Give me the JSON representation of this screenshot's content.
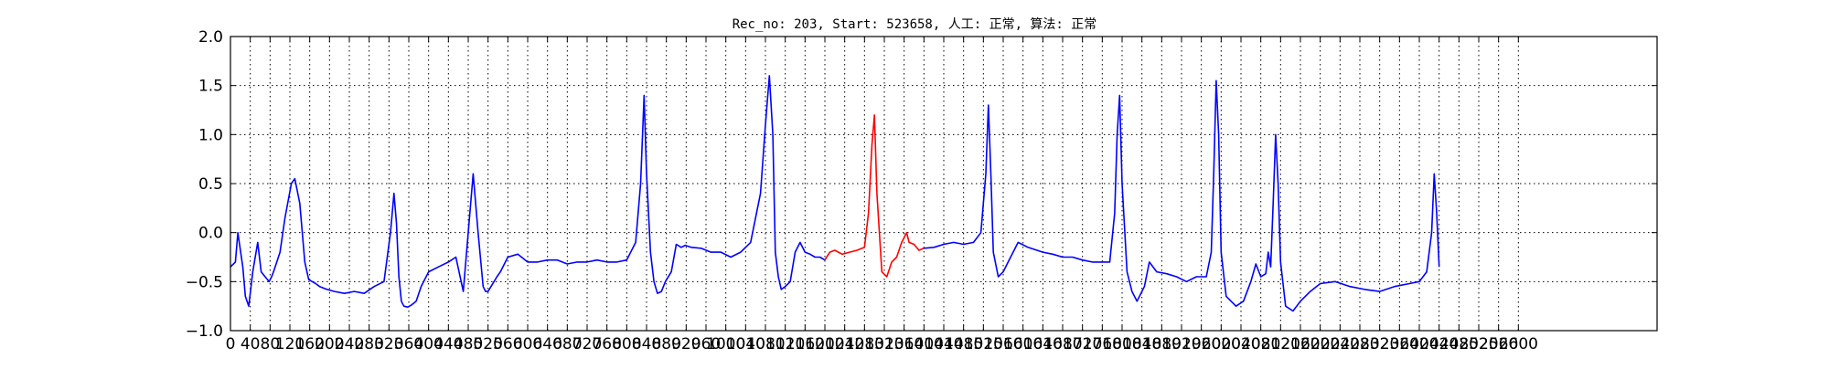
{
  "chart_data": {
    "type": "line",
    "title": "Rec_no: 203, Start: 523658, 人工: 正常, 算法: 正常",
    "xlabel": "",
    "ylabel": "",
    "xlim": [
      0,
      2880
    ],
    "ylim": [
      -1.0,
      2.0
    ],
    "grid": true,
    "y_ticks": [
      "−1.0",
      "−0.5",
      "0.0",
      "0.5",
      "1.0",
      "1.5",
      "2.0"
    ],
    "x_ticks": [
      "0",
      "40",
      "80",
      "120",
      "160",
      "200",
      "240",
      "280",
      "320",
      "360",
      "400",
      "440",
      "480",
      "520",
      "560",
      "600",
      "640",
      "680",
      "720",
      "760",
      "800",
      "840",
      "880",
      "920",
      "960",
      "1000",
      "1040",
      "1080",
      "1120",
      "1160",
      "1200",
      "1240",
      "1280",
      "1320",
      "1360",
      "1400",
      "1440",
      "1480",
      "1520",
      "1560",
      "1600",
      "1640",
      "1680",
      "1720",
      "1760",
      "1800",
      "1840",
      "1880",
      "1920",
      "1960",
      "2000",
      "2040",
      "2080",
      "2120",
      "2160",
      "2200",
      "2240",
      "2280",
      "2320",
      "2360",
      "2400",
      "2440",
      "2480",
      "2520",
      "2560",
      "2600"
    ],
    "series": [
      {
        "color": "#0000ff",
        "x": [
          0,
          10,
          15,
          25,
          30,
          37,
          45,
          55,
          62,
          70,
          78,
          83,
          87,
          100,
          110,
          123,
          130,
          140,
          150,
          158,
          165,
          172,
          180,
          195,
          210,
          230,
          250,
          270,
          290,
          310,
          323,
          330,
          335,
          340,
          345,
          350,
          358,
          365,
          375,
          385,
          400,
          420,
          440,
          455,
          470,
          480,
          490,
          500,
          510,
          515,
          520,
          526,
          532,
          538,
          545,
          560,
          580,
          600,
          620,
          640,
          660,
          680,
          700,
          720,
          740,
          760,
          780,
          800,
          818,
          828,
          835,
          840,
          848,
          855,
          862,
          870,
          878,
          890,
          900,
          910,
          918,
          930,
          950,
          970,
          990,
          1010,
          1030,
          1050,
          1070,
          1080,
          1088,
          1095,
          1100,
          1106,
          1112,
          1120,
          1130,
          1140,
          1150,
          1160,
          1170,
          1180,
          1190,
          1200
        ],
        "y": [
          -0.35,
          -0.3,
          0.0,
          -0.35,
          -0.65,
          -0.75,
          -0.4,
          -0.1,
          -0.4,
          -0.45,
          -0.5,
          -0.45,
          -0.4,
          -0.2,
          0.15,
          0.5,
          0.55,
          0.3,
          -0.3,
          -0.48,
          -0.5,
          -0.52,
          -0.55,
          -0.58,
          -0.6,
          -0.62,
          -0.6,
          -0.62,
          -0.55,
          -0.5,
          0.0,
          0.4,
          0.1,
          -0.45,
          -0.7,
          -0.75,
          -0.76,
          -0.74,
          -0.7,
          -0.55,
          -0.4,
          -0.35,
          -0.3,
          -0.25,
          -0.6,
          0.0,
          0.6,
          0.0,
          -0.55,
          -0.6,
          -0.6,
          -0.55,
          -0.5,
          -0.45,
          -0.4,
          -0.25,
          -0.22,
          -0.3,
          -0.3,
          -0.28,
          -0.28,
          -0.32,
          -0.3,
          -0.3,
          -0.28,
          -0.3,
          -0.3,
          -0.28,
          -0.1,
          0.5,
          1.4,
          0.6,
          -0.2,
          -0.5,
          -0.62,
          -0.6,
          -0.5,
          -0.4,
          -0.12,
          -0.15,
          -0.13,
          -0.15,
          -0.16,
          -0.2,
          -0.2,
          -0.25,
          -0.2,
          -0.1,
          0.4,
          1.1,
          1.6,
          1.0,
          -0.2,
          -0.45,
          -0.58,
          -0.55,
          -0.5,
          -0.2,
          -0.1,
          -0.2,
          -0.22,
          -0.25,
          -0.25,
          -0.28
        ]
      },
      {
        "color": "#ff0000",
        "x": [
          1200,
          1210,
          1220,
          1235,
          1250,
          1265,
          1280,
          1288,
          1295,
          1300,
          1305,
          1315,
          1325,
          1335,
          1345,
          1355,
          1365,
          1370,
          1380,
          1390,
          1400
        ],
        "y": [
          -0.28,
          -0.2,
          -0.18,
          -0.22,
          -0.2,
          -0.18,
          -0.15,
          0.2,
          0.9,
          1.2,
          0.4,
          -0.4,
          -0.45,
          -0.3,
          -0.25,
          -0.1,
          0.0,
          -0.1,
          -0.12,
          -0.18,
          -0.16
        ]
      },
      {
        "color": "#0000ff",
        "x": [
          1400,
          1420,
          1440,
          1460,
          1480,
          1500,
          1515,
          1525,
          1530,
          1535,
          1540,
          1550,
          1560,
          1575,
          1590,
          1610,
          1640,
          1660,
          1680,
          1700,
          1720,
          1740,
          1760,
          1775,
          1785,
          1790,
          1795,
          1800,
          1810,
          1820,
          1830,
          1845,
          1855,
          1870,
          1890,
          1910,
          1930,
          1950,
          1970,
          1980,
          1985,
          1990,
          1995,
          2000,
          2010,
          2030,
          2045,
          2060,
          2070,
          2080,
          2090,
          2095,
          2100,
          2105,
          2110,
          2115,
          2120,
          2130,
          2145,
          2160,
          2180,
          2200,
          2230,
          2260,
          2290,
          2320,
          2350,
          2380,
          2400,
          2415,
          2425,
          2430,
          2435,
          2440
        ],
        "y": [
          -0.16,
          -0.15,
          -0.12,
          -0.1,
          -0.12,
          -0.1,
          0.0,
          0.6,
          1.3,
          0.6,
          -0.2,
          -0.45,
          -0.4,
          -0.25,
          -0.1,
          -0.15,
          -0.2,
          -0.22,
          -0.25,
          -0.25,
          -0.28,
          -0.3,
          -0.3,
          -0.3,
          0.2,
          1.0,
          1.4,
          0.5,
          -0.4,
          -0.6,
          -0.7,
          -0.55,
          -0.3,
          -0.4,
          -0.42,
          -0.45,
          -0.5,
          -0.45,
          -0.45,
          -0.2,
          0.6,
          1.55,
          1.0,
          -0.2,
          -0.65,
          -0.75,
          -0.7,
          -0.5,
          -0.32,
          -0.45,
          -0.42,
          -0.2,
          -0.35,
          0.3,
          1.0,
          0.5,
          -0.3,
          -0.75,
          -0.8,
          -0.7,
          -0.6,
          -0.52,
          -0.5,
          -0.55,
          -0.58,
          -0.6,
          -0.55,
          -0.52,
          -0.5,
          -0.4,
          0.0,
          0.6,
          0.2,
          -0.35
        ]
      }
    ]
  }
}
